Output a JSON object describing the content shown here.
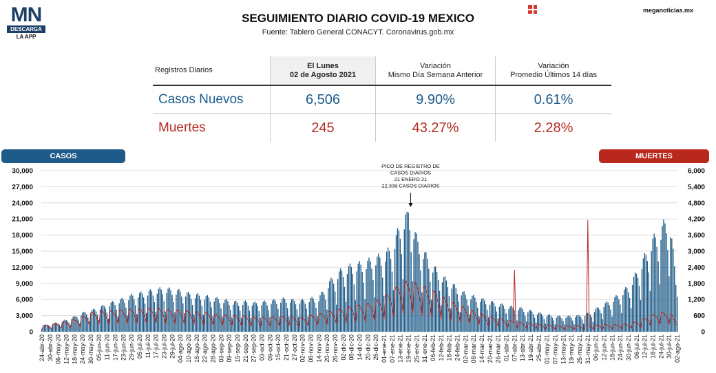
{
  "logo": {
    "mn": "MN",
    "descarga": "DESCARGA",
    "app": "LA APP"
  },
  "header": {
    "title": "SEGUIMIENTO DIARIO COVID-19 MEXICO",
    "subtitle": "Fuente: Tablero General CONACYT. Coronavirus.gob.mx",
    "site": "meganoticias.mx"
  },
  "table": {
    "h0": "Registros Diarios",
    "h1a": "El Lunes",
    "h1b": "02 de Agosto 2021",
    "h2a": "Variación",
    "h2b": "Mismo Día Semana Anterior",
    "h3a": "Variación",
    "h3b": "Promedio Últimos 14 días",
    "rows": [
      {
        "label": "Casos Nuevos",
        "value": "6,506",
        "var_week": "9.90%",
        "var_avg": "0.61%"
      },
      {
        "label": "Muertes",
        "value": "245",
        "var_week": "43.27%",
        "var_avg": "2.28%"
      }
    ]
  },
  "colors": {
    "casos": "#1f5b88",
    "muertes": "#b8281d"
  },
  "chart_data": {
    "type": "bar",
    "casos_label": "CASOS",
    "muertes_label": "MUERTES",
    "left_ticks": [
      "0",
      "3,000",
      "6,000",
      "9,000",
      "12,000",
      "15,000",
      "18,000",
      "21,000",
      "24,000",
      "27,000",
      "30,000"
    ],
    "right_ticks": [
      "0",
      "600",
      "1,200",
      "1,800",
      "2,400",
      "3,000",
      "3,600",
      "4,200",
      "4,800",
      "5,400",
      "6,000"
    ],
    "ylim_left": [
      0,
      30000
    ],
    "ylim_right": [
      0,
      6000
    ],
    "annotation": [
      "PICO DE REGISTRO DE",
      "CASOS DIARIOS",
      "21 ENERO 21",
      "22,339 CASOS DIARIOS"
    ],
    "x_labels": [
      "24-abr-20",
      "30-abr-20",
      "06-may-20",
      "12-may-20",
      "18-may-20",
      "24-may-20",
      "30-may-20",
      "05-jun-20",
      "11-jun-20",
      "17-jun-20",
      "23-jun-20",
      "29-jun-20",
      "05-jul-20",
      "11-jul-20",
      "17-jul-20",
      "23-jul-20",
      "29-jul-20",
      "04-ago-20",
      "10-ago-20",
      "16-ago-20",
      "22-ago-20",
      "28-ago-20",
      "03-sep-20",
      "09-sep-20",
      "15-sep-20",
      "21-sep-20",
      "27-sep-20",
      "03-oct-20",
      "09-oct-20",
      "15-oct-20",
      "21-oct-20",
      "27-oct-20",
      "02-nov-20",
      "08-nov-20",
      "14-nov-20",
      "20-nov-20",
      "26-nov-20",
      "02-dic-20",
      "08-dic-20",
      "14-dic-20",
      "20-dic-20",
      "26-dic-20",
      "01-ene-21",
      "07-ene-21",
      "13-ene-21",
      "19-ene-21",
      "25-ene-21",
      "31-ene-21",
      "06-feb-21",
      "12-feb-21",
      "18-feb-21",
      "24-feb-21",
      "02-mar-21",
      "08-mar-21",
      "14-mar-21",
      "20-mar-21",
      "26-mar-21",
      "01-abr-21",
      "07-abr-21",
      "13-abr-21",
      "19-abr-21",
      "25-abr-21",
      "01-may-21",
      "07-may-21",
      "13-may-21",
      "19-may-21",
      "25-may-21",
      "31-may-21",
      "06-jun-21",
      "12-jun-21",
      "18-jun-21",
      "24-jun-21",
      "30-jun-21",
      "06-jul-21",
      "12-jul-21",
      "18-jul-21",
      "24-jul-21",
      "30-jul-21",
      "02-ago-21"
    ],
    "casos_weekly": [
      1000,
      1200,
      1500,
      1900,
      2400,
      3000,
      3300,
      3900,
      4300,
      4900,
      5200,
      5800,
      6100,
      6400,
      6700,
      6900,
      6700,
      6500,
      6100,
      5900,
      5700,
      5400,
      5200,
      4900,
      4700,
      4800,
      4600,
      4700,
      4900,
      5100,
      5300,
      5000,
      5000,
      5300,
      5400,
      7500,
      9000,
      10000,
      10500,
      10800,
      11200,
      11800,
      12200,
      13500,
      17000,
      19300,
      15000,
      12500,
      10500,
      8900,
      8000,
      6900,
      6000,
      5600,
      5200,
      4800,
      4500,
      4100,
      3900,
      3700,
      3300,
      3000,
      2700,
      2500,
      2400,
      2500,
      2600,
      2900,
      3600,
      4400,
      5100,
      6100,
      7200,
      9400,
      12000,
      14700,
      16300,
      18800,
      6506
    ],
    "muertes_weekly": [
      180,
      200,
      250,
      300,
      360,
      440,
      560,
      600,
      600,
      620,
      640,
      660,
      660,
      680,
      680,
      660,
      640,
      620,
      600,
      580,
      560,
      520,
      500,
      480,
      470,
      460,
      430,
      420,
      420,
      440,
      460,
      420,
      400,
      480,
      520,
      580,
      620,
      700,
      740,
      780,
      820,
      900,
      1000,
      1200,
      1400,
      1500,
      1400,
      1300,
      1200,
      1050,
      900,
      800,
      700,
      600,
      520,
      440,
      400,
      340,
      300,
      260,
      240,
      220,
      200,
      180,
      170,
      170,
      180,
      190,
      200,
      210,
      200,
      220,
      230,
      300,
      400,
      500,
      560,
      600,
      245
    ],
    "muertes_spikes": [
      {
        "date": "07-abr-21",
        "value": 2300
      },
      {
        "date": "31-may-21",
        "value": 4160
      }
    ]
  }
}
